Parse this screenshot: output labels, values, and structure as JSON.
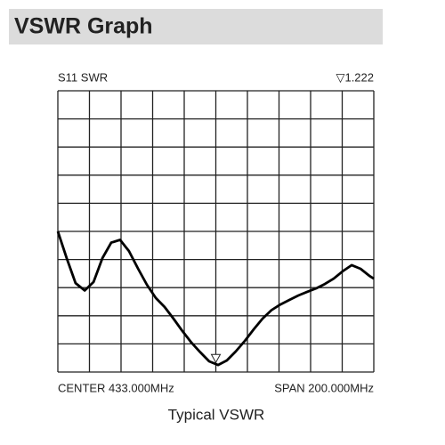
{
  "chart_data": {
    "type": "line",
    "header": "VSWR Graph",
    "title": "S11 SWR",
    "start_label": "CENTER 433.000MHz",
    "end_label": "SPAN 200.000MHz",
    "caption": "Typical VSWR",
    "x": [
      0,
      0.28,
      0.56,
      0.85,
      1.13,
      1.41,
      1.69,
      1.97,
      2.25,
      2.54,
      2.82,
      3.1,
      3.38,
      3.66,
      3.94,
      4.23,
      4.51,
      4.79,
      5.07,
      5.35,
      5.63,
      5.92,
      6.2,
      6.48,
      6.76,
      7.04,
      7.32,
      7.61,
      7.89,
      8.17,
      8.45,
      8.73,
      9.01,
      9.3,
      9.58,
      9.86,
      10
    ],
    "values": [
      5.0,
      4.05,
      3.16,
      2.9,
      3.2,
      4.05,
      4.6,
      4.7,
      4.3,
      3.67,
      3.1,
      2.63,
      2.31,
      1.9,
      1.46,
      1.04,
      0.7,
      0.38,
      0.25,
      0.41,
      0.73,
      1.11,
      1.52,
      1.9,
      2.2,
      2.4,
      2.56,
      2.72,
      2.85,
      2.97,
      3.13,
      3.32,
      3.58,
      3.8,
      3.67,
      3.42,
      3.32
    ],
    "color": "#000000",
    "marker": {
      "x": 5.0,
      "y": 0.5,
      "label": "▽1.222"
    },
    "xlim": [
      0,
      10
    ],
    "xticks": [
      0,
      1,
      2,
      3,
      4,
      5,
      6,
      7,
      8,
      9,
      10
    ],
    "ylim": [
      0,
      10
    ],
    "yticks": [
      0,
      1,
      2,
      3,
      4,
      5,
      6,
      7,
      8,
      9,
      10
    ],
    "grid": true
  }
}
